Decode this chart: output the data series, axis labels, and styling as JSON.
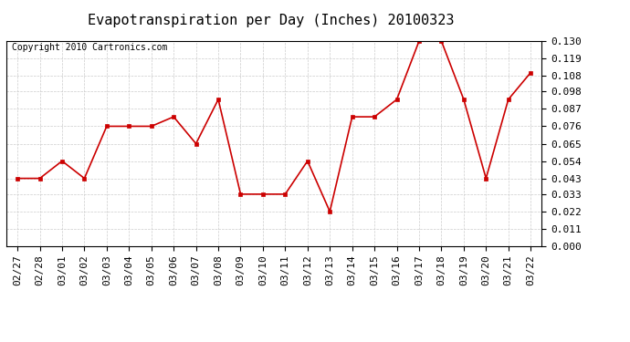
{
  "title": "Evapotranspiration per Day (Inches) 20100323",
  "copyright": "Copyright 2010 Cartronics.com",
  "dates": [
    "02/27",
    "02/28",
    "03/01",
    "03/02",
    "03/03",
    "03/04",
    "03/05",
    "03/06",
    "03/07",
    "03/08",
    "03/09",
    "03/10",
    "03/11",
    "03/12",
    "03/13",
    "03/14",
    "03/15",
    "03/16",
    "03/17",
    "03/18",
    "03/19",
    "03/20",
    "03/21",
    "03/22"
  ],
  "values": [
    0.043,
    0.043,
    0.054,
    0.043,
    0.076,
    0.076,
    0.076,
    0.082,
    0.065,
    0.093,
    0.033,
    0.033,
    0.033,
    0.054,
    0.022,
    0.082,
    0.082,
    0.093,
    0.13,
    0.13,
    0.093,
    0.043,
    0.093,
    0.11
  ],
  "line_color": "#cc0000",
  "marker": "s",
  "marker_size": 3,
  "marker_color": "#cc0000",
  "ylim": [
    0.0,
    0.13
  ],
  "yticks": [
    0.0,
    0.011,
    0.022,
    0.033,
    0.043,
    0.054,
    0.065,
    0.076,
    0.087,
    0.098,
    0.108,
    0.119,
    0.13
  ],
  "background_color": "#ffffff",
  "grid_color": "#cccccc",
  "title_fontsize": 11,
  "copyright_fontsize": 7,
  "tick_fontsize": 8,
  "yaxis_fontsize": 8
}
